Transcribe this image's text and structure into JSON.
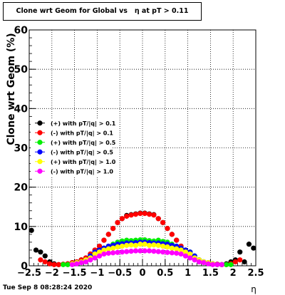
{
  "title": "Clone wrt Geom for Global vs   η at pT > 0.11",
  "timestamp": "Tue Sep  8 08:28:24 2020",
  "chart_data": {
    "type": "scatter",
    "title": "Clone wrt Geom for Global vs   η at pT > 0.11",
    "xlabel": "η",
    "ylabel": "Clone wrt Geom (%)",
    "xlim": [
      -2.5,
      2.5
    ],
    "ylim": [
      0,
      60
    ],
    "x_ticks": [
      -2.5,
      -2,
      -1.5,
      -1,
      -0.5,
      0,
      0.5,
      1,
      1.5,
      2,
      2.5
    ],
    "x_tick_labels": [
      "−2.5",
      "−2",
      "−1.5",
      "−1",
      "−0.5",
      "0",
      "0.5",
      "1",
      "1.5",
      "2",
      "2.5"
    ],
    "y_ticks": [
      0,
      10,
      20,
      30,
      40,
      50,
      60
    ],
    "y_tick_labels": [
      "0",
      "10",
      "20",
      "30",
      "40",
      "50",
      "60"
    ],
    "grid": true,
    "legend_position": "left-middle",
    "series": [
      {
        "name": "(+) with pT/|q| > 0.1",
        "color": "#000000",
        "x": [
          -2.45,
          -2.35,
          -2.25,
          -2.15,
          -2.05,
          -1.95,
          -1.85,
          -1.75,
          -1.65,
          -1.55,
          -1.45,
          -1.35,
          -1.25,
          -1.15,
          -1.05,
          -0.95,
          -0.85,
          -0.75,
          -0.65,
          -0.55,
          -0.45,
          -0.35,
          -0.25,
          -0.15,
          -0.05,
          0.05,
          0.15,
          0.25,
          0.35,
          0.45,
          0.55,
          0.65,
          0.75,
          0.85,
          0.95,
          1.05,
          1.15,
          1.25,
          1.35,
          1.45,
          1.55,
          1.65,
          1.75,
          1.85,
          1.95,
          2.05,
          2.15,
          2.25,
          2.35,
          2.45
        ],
        "y": [
          9,
          4,
          3.5,
          2.5,
          1,
          0.5,
          0.3,
          0.4,
          0.5,
          0.8,
          1,
          1.5,
          2,
          3,
          4,
          5,
          6.5,
          8,
          9.5,
          11,
          12,
          12.8,
          13,
          13.2,
          13.4,
          13.4,
          13.2,
          13,
          12,
          11,
          9.5,
          8,
          6.5,
          5,
          4,
          3,
          2,
          1.5,
          1,
          0.8,
          0.5,
          0.4,
          0.3,
          0.5,
          1,
          1.5,
          3.5,
          1,
          5.5,
          4.5
        ]
      },
      {
        "name": "(-) with pT/|q| > 0.1",
        "color": "#ff0000",
        "x": [
          -2.25,
          -2.15,
          -2.05,
          -1.95,
          -1.85,
          -1.75,
          -1.65,
          -1.55,
          -1.45,
          -1.35,
          -1.25,
          -1.15,
          -1.05,
          -0.95,
          -0.85,
          -0.75,
          -0.65,
          -0.55,
          -0.45,
          -0.35,
          -0.25,
          -0.15,
          -0.05,
          0.05,
          0.15,
          0.25,
          0.35,
          0.45,
          0.55,
          0.65,
          0.75,
          0.85,
          0.95,
          1.05,
          1.15,
          1.25,
          1.35,
          1.45,
          1.55,
          1.65,
          1.75,
          1.85,
          1.95,
          2.05,
          2.15
        ],
        "y": [
          1.5,
          1,
          0.5,
          0.3,
          0.3,
          0.4,
          0.5,
          0.8,
          1,
          1.5,
          2,
          3,
          4,
          5,
          6.5,
          8,
          9.5,
          11,
          12,
          12.6,
          12.9,
          13.1,
          13.3,
          13.3,
          13.1,
          12.9,
          12,
          11,
          9.5,
          8,
          6.5,
          5,
          4,
          3,
          2,
          1.5,
          1,
          0.8,
          0.5,
          0.4,
          0.3,
          0.3,
          0.5,
          1,
          1.5
        ]
      },
      {
        "name": "(+) with pT/|q| > 0.5",
        "color": "#00ee00",
        "x": [
          -1.75,
          -1.65,
          -1.55,
          -1.45,
          -1.35,
          -1.25,
          -1.15,
          -1.05,
          -0.95,
          -0.85,
          -0.75,
          -0.65,
          -0.55,
          -0.45,
          -0.35,
          -0.25,
          -0.15,
          -0.05,
          0.05,
          0.15,
          0.25,
          0.35,
          0.45,
          0.55,
          0.65,
          0.75,
          0.85,
          0.95,
          1.05,
          1.15,
          1.25,
          1.35,
          1.45,
          1.55,
          1.65,
          1.75,
          1.85,
          1.95
        ],
        "y": [
          0.3,
          0.3,
          0.5,
          0.8,
          1,
          1.5,
          2.5,
          3.5,
          4,
          4.5,
          5,
          5.5,
          6,
          6.3,
          6.5,
          6.4,
          6.5,
          6.6,
          6.6,
          6.4,
          6.3,
          6.5,
          6.2,
          6,
          5.5,
          5,
          4.5,
          4,
          3.5,
          2.5,
          1.5,
          1,
          0.8,
          0.5,
          0.3,
          0.3,
          0.3,
          0.3
        ]
      },
      {
        "name": "(-) with pT/|q| > 0.5",
        "color": "#0000ff",
        "x": [
          -1.55,
          -1.45,
          -1.35,
          -1.25,
          -1.15,
          -1.05,
          -0.95,
          -0.85,
          -0.75,
          -0.65,
          -0.55,
          -0.45,
          -0.35,
          -0.25,
          -0.15,
          -0.05,
          0.05,
          0.15,
          0.25,
          0.35,
          0.45,
          0.55,
          0.65,
          0.75,
          0.85,
          0.95,
          1.05,
          1.15,
          1.25,
          1.35,
          1.45,
          1.55
        ],
        "y": [
          0.5,
          0.8,
          1,
          1.5,
          2.5,
          3.5,
          4,
          4.5,
          5,
          5.2,
          5.5,
          5.6,
          5.8,
          5.8,
          5.9,
          6,
          6,
          5.9,
          5.8,
          5.8,
          5.6,
          5.5,
          5.2,
          5,
          4.5,
          4,
          3.5,
          2.5,
          1.5,
          1,
          0.8,
          0.5
        ]
      },
      {
        "name": "(+) with pT/|q| > 1.0",
        "color": "#ffff00",
        "x": [
          -1.55,
          -1.45,
          -1.35,
          -1.25,
          -1.15,
          -1.05,
          -0.95,
          -0.85,
          -0.75,
          -0.65,
          -0.55,
          -0.45,
          -0.35,
          -0.25,
          -0.15,
          -0.05,
          0.05,
          0.15,
          0.25,
          0.35,
          0.45,
          0.55,
          0.65,
          0.75,
          0.85,
          0.95,
          1.05,
          1.15,
          1.25,
          1.35,
          1.45,
          1.55
        ],
        "y": [
          0.5,
          0.8,
          1,
          1.5,
          2,
          3,
          3.5,
          4,
          4.3,
          4.5,
          4.8,
          5,
          5.2,
          5.3,
          5.2,
          5.5,
          5.5,
          5.2,
          5.3,
          5.2,
          5,
          4.8,
          4.5,
          4.3,
          4,
          3.5,
          3,
          2,
          1.5,
          1,
          0.8,
          0.5
        ]
      },
      {
        "name": "(-) with pT/|q| > 1.0",
        "color": "#ff00ff",
        "x": [
          -1.55,
          -1.45,
          -1.35,
          -1.25,
          -1.15,
          -1.05,
          -0.95,
          -0.85,
          -0.75,
          -0.65,
          -0.55,
          -0.45,
          -0.35,
          -0.25,
          -0.15,
          -0.05,
          0.05,
          0.15,
          0.25,
          0.35,
          0.45,
          0.55,
          0.65,
          0.75,
          0.85,
          0.95,
          1.05,
          1.15,
          1.25,
          1.35,
          1.45,
          1.55,
          1.65,
          1.75
        ],
        "y": [
          0.3,
          0.5,
          0.8,
          1,
          1.5,
          2,
          2.5,
          3,
          3.2,
          3.3,
          3.4,
          3.5,
          3.6,
          3.7,
          3.8,
          3.8,
          3.8,
          3.8,
          3.7,
          3.6,
          3.5,
          3.4,
          3.3,
          3.2,
          3,
          2.5,
          2,
          1.5,
          1,
          0.8,
          0.5,
          0.3,
          0.3,
          0.3
        ]
      }
    ]
  }
}
